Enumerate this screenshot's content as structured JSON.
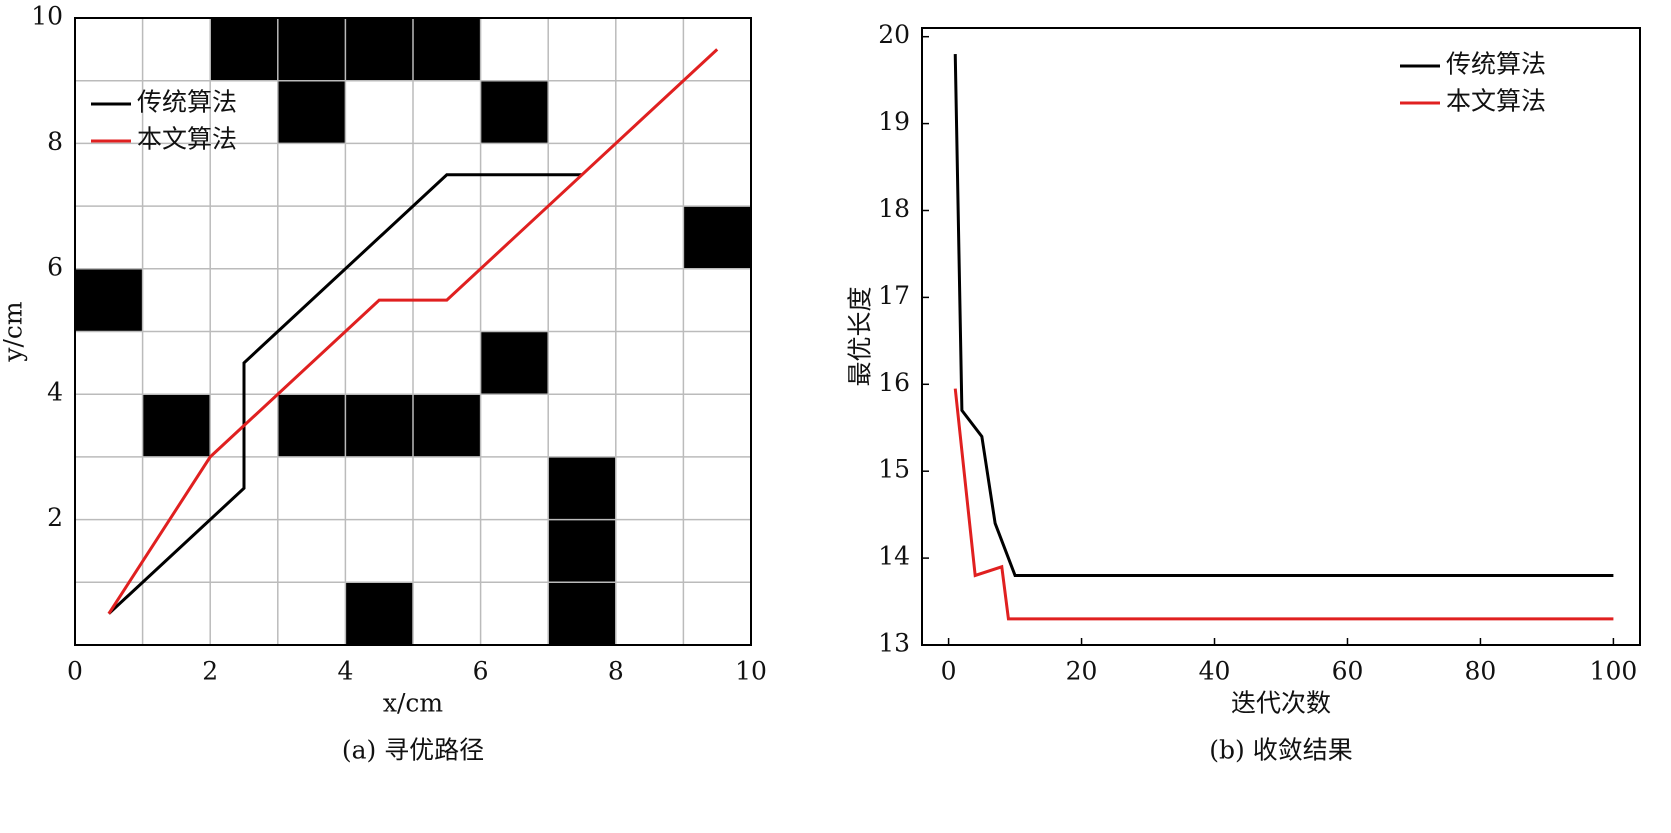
{
  "chart_data": [
    {
      "type": "line",
      "caption": "(a) 寻优路径",
      "xlabel": "x/cm",
      "ylabel": "y/cm",
      "xlim": [
        0,
        10
      ],
      "ylim": [
        0,
        10
      ],
      "xticks": [
        0,
        2,
        4,
        6,
        8,
        10
      ],
      "yticks": [
        2,
        4,
        6,
        8,
        10
      ],
      "grid_x": [
        1,
        2,
        3,
        4,
        5,
        6,
        7,
        8,
        9
      ],
      "grid_y": [
        1,
        2,
        3,
        4,
        5,
        6,
        7,
        8,
        9
      ],
      "obstacle_color": "#000000",
      "obstacles": [
        [
          2,
          9
        ],
        [
          3,
          9
        ],
        [
          4,
          9
        ],
        [
          5,
          9
        ],
        [
          3,
          8
        ],
        [
          6,
          8
        ],
        [
          9,
          6
        ],
        [
          0,
          5
        ],
        [
          6,
          4
        ],
        [
          1,
          3
        ],
        [
          3,
          3
        ],
        [
          4,
          3
        ],
        [
          5,
          3
        ],
        [
          7,
          2
        ],
        [
          7,
          1
        ],
        [
          4,
          0
        ],
        [
          7,
          0
        ]
      ],
      "legend": "upper left",
      "series": [
        {
          "name": "传统算法",
          "color": "#000000",
          "x": [
            0.5,
            2.5,
            2.5,
            5.5,
            7.5
          ],
          "values": [
            0.5,
            2.5,
            4.5,
            7.5,
            7.5
          ]
        },
        {
          "name": "本文算法",
          "color": "#e02020",
          "x": [
            0.5,
            2,
            4.5,
            5.5,
            9.5
          ],
          "values": [
            0.5,
            3,
            5.5,
            5.5,
            9.5
          ]
        }
      ]
    },
    {
      "type": "line",
      "caption": "(b) 收敛结果",
      "xlabel": "迭代次数",
      "ylabel": "最优长度",
      "xlim": [
        -4,
        104
      ],
      "ylim": [
        13,
        20.1
      ],
      "xticks": [
        0,
        20,
        40,
        60,
        80,
        100
      ],
      "yticks": [
        13,
        14,
        15,
        16,
        17,
        18,
        19,
        20
      ],
      "legend": "upper right",
      "series": [
        {
          "name": "传统算法",
          "color": "#000000",
          "x": [
            1,
            2,
            5,
            7,
            10,
            100
          ],
          "values": [
            19.8,
            15.7,
            15.4,
            14.4,
            13.8,
            13.8
          ]
        },
        {
          "name": "本文算法",
          "color": "#e02020",
          "x": [
            1,
            4,
            8,
            9,
            100
          ],
          "values": [
            15.95,
            13.8,
            13.9,
            13.3,
            13.3
          ]
        }
      ]
    }
  ]
}
